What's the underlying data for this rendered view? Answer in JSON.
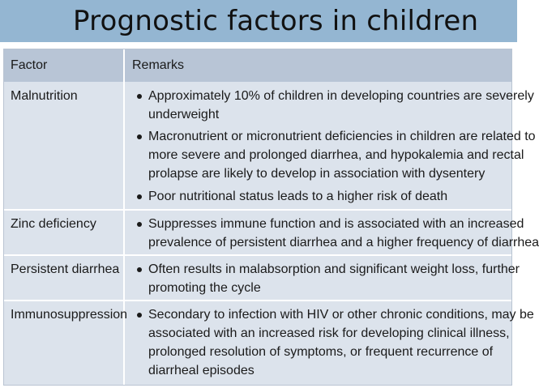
{
  "slide": {
    "title": "Prognostic factors in children"
  },
  "table": {
    "headers": [
      "Factor",
      "Remarks"
    ],
    "rows": [
      {
        "factor": "Malnutrition",
        "remarks": [
          [
            "Approximately 10% of children in developing countries are severely",
            "underweight"
          ],
          [
            "Macronutrient or micronutrient deficiencies in children are related to",
            "more severe and prolonged diarrhea, and hypokalemia and rectal",
            "prolapse are likely to develop in association with dysentery"
          ],
          [
            "Poor nutritional status leads to a higher risk of death"
          ]
        ]
      },
      {
        "factor": "Zinc deficiency",
        "remarks": [
          [
            "Suppresses immune function and is associated with an increased",
            "prevalence of persistent diarrhea and a higher frequency of diarrhea"
          ]
        ]
      },
      {
        "factor": "Persistent diarrhea",
        "remarks": [
          [
            "Often results in malabsorption and significant weight loss, further",
            "promoting the cycle"
          ]
        ]
      },
      {
        "factor": "Immunosuppression",
        "remarks": [
          [
            "Secondary to infection with HIV or other chronic conditions, may be",
            "associated with an increased risk for developing clinical illness,",
            "prolonged resolution of symptoms, or frequent recurrence of",
            "diarrheal episodes"
          ]
        ]
      }
    ]
  }
}
